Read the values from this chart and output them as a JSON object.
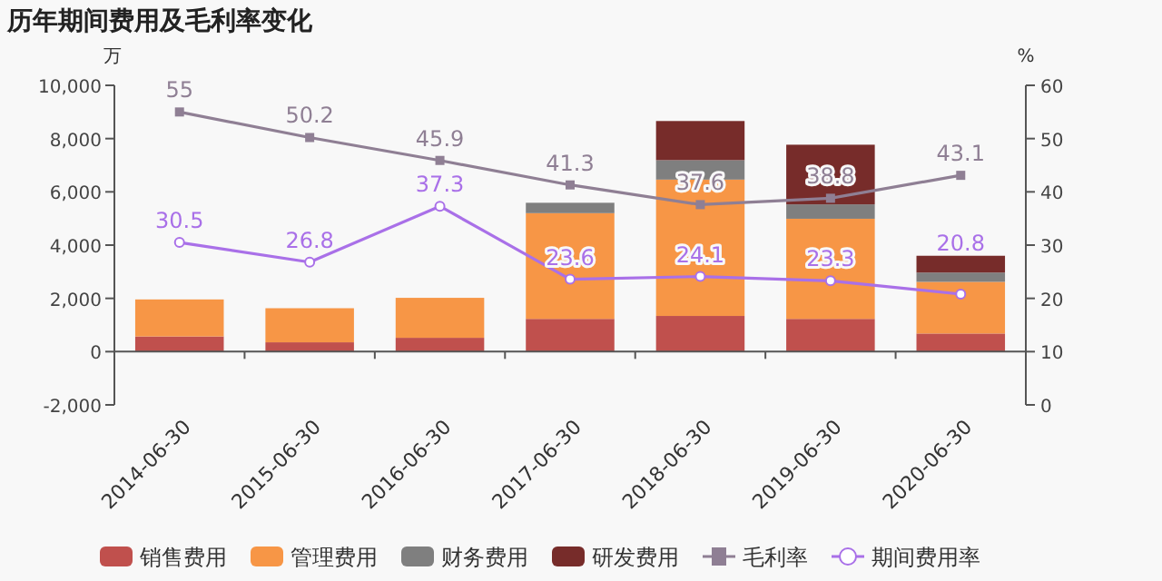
{
  "chart_data": {
    "type": "bar",
    "title": "历年期间费用及毛利率变化",
    "ylabel": "万",
    "y2label": "%",
    "categories": [
      "2014-06-30",
      "2015-06-30",
      "2016-06-30",
      "2017-06-30",
      "2018-06-30",
      "2019-06-30",
      "2020-06-30"
    ],
    "stacked": true,
    "ylim": [
      -2000,
      10000
    ],
    "yticks": [
      {
        "value": -2000,
        "label": "-2,000"
      },
      0,
      {
        "value": 2000,
        "label": "2,000"
      },
      {
        "value": 4000,
        "label": "4,000"
      },
      {
        "value": 6000,
        "label": "6,000"
      },
      {
        "value": 8000,
        "label": "8,000"
      },
      {
        "value": 10000,
        "label": "10,000"
      }
    ],
    "y2lim": [
      0,
      60
    ],
    "y2ticks": [
      0,
      10,
      20,
      30,
      40,
      50,
      60
    ],
    "legend": "bottom",
    "series": [
      {
        "name": "销售费用",
        "color": "#c0504d",
        "values": [
          570,
          350,
          520,
          1230,
          1340,
          1230,
          680
        ]
      },
      {
        "name": "管理费用",
        "color": "#f79646",
        "values": [
          1390,
          1280,
          1500,
          3970,
          5120,
          3760,
          1940
        ]
      },
      {
        "name": "财务费用",
        "color": "#7f7f7f",
        "values": [
          null,
          null,
          null,
          390,
          730,
          540,
          350
        ]
      },
      {
        "name": "研发费用",
        "color": "#772c2a",
        "values": [
          null,
          null,
          null,
          null,
          1470,
          2240,
          630
        ]
      },
      {
        "name": "毛利率",
        "type": "line",
        "axis": "y2",
        "marker": "square",
        "color": "#8f7f94",
        "values": [
          55,
          50.2,
          45.9,
          41.3,
          37.6,
          38.8,
          43.1
        ],
        "value_labels": [
          "55",
          "50.2",
          "45.9",
          "41.3",
          "37.6",
          "38.8",
          "43.1"
        ]
      },
      {
        "name": "期间费用率",
        "type": "line",
        "axis": "y2",
        "marker": "circle",
        "color": "#a970e8",
        "values": [
          30.5,
          26.8,
          37.3,
          23.6,
          24.1,
          23.3,
          20.8
        ],
        "value_labels": [
          "30.5",
          "26.8",
          "37.3",
          "23.6",
          "24.1",
          "23.3",
          "20.8"
        ]
      }
    ]
  }
}
